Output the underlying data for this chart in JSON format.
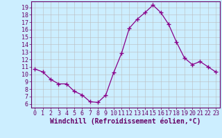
{
  "x": [
    0,
    1,
    2,
    3,
    4,
    5,
    6,
    7,
    8,
    9,
    10,
    11,
    12,
    13,
    14,
    15,
    16,
    17,
    18,
    19,
    20,
    21,
    22,
    23
  ],
  "y": [
    10.7,
    10.3,
    9.3,
    8.7,
    8.7,
    7.7,
    7.2,
    6.3,
    6.2,
    7.2,
    10.2,
    12.8,
    16.2,
    17.4,
    18.3,
    19.3,
    18.3,
    16.7,
    14.3,
    12.2,
    11.3,
    11.7,
    11.0,
    10.3
  ],
  "line_color": "#880088",
  "marker": "+",
  "bg_color": "#cceeff",
  "grid_color": "#bbbbbb",
  "xlabel": "Windchill (Refroidissement éolien,°C)",
  "xlim": [
    -0.5,
    23.5
  ],
  "ylim": [
    5.5,
    19.8
  ],
  "yticks": [
    6,
    7,
    8,
    9,
    10,
    11,
    12,
    13,
    14,
    15,
    16,
    17,
    18,
    19
  ],
  "xticks": [
    0,
    1,
    2,
    3,
    4,
    5,
    6,
    7,
    8,
    9,
    10,
    11,
    12,
    13,
    14,
    15,
    16,
    17,
    18,
    19,
    20,
    21,
    22,
    23
  ],
  "font_color": "#660066",
  "tick_fontsize": 6,
  "xlabel_fontsize": 7
}
